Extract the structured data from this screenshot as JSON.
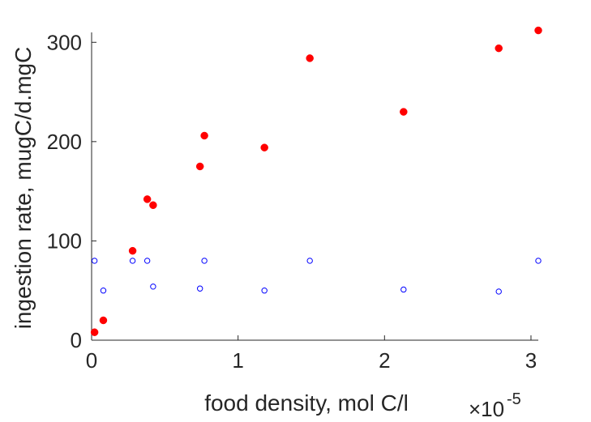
{
  "chart_data": {
    "type": "scatter",
    "title": "",
    "xlabel": "food density, mol C/l",
    "ylabel": "ingestion rate, mugC/d.mgC",
    "x_exponent": {
      "base": "×10",
      "power": "-5"
    },
    "xlim": [
      0,
      3.05
    ],
    "ylim": [
      0,
      310
    ],
    "xticks": [
      0,
      1,
      2,
      3
    ],
    "yticks": [
      0,
      100,
      200,
      300
    ],
    "grid": false,
    "legend": "none",
    "series": [
      {
        "marker": "filled-circle",
        "color": "#ff0000",
        "x": [
          0.02,
          0.08,
          0.28,
          0.38,
          0.42,
          0.74,
          0.77,
          1.18,
          1.49,
          2.13,
          2.78,
          3.05
        ],
        "y": [
          8,
          20,
          90,
          142,
          136,
          175,
          206,
          194,
          284,
          230,
          294,
          312
        ]
      },
      {
        "marker": "open-circle",
        "color": "#0000ff",
        "x": [
          0.02,
          0.08,
          0.28,
          0.38,
          0.42,
          0.74,
          0.77,
          1.18,
          1.49,
          2.13,
          2.78,
          3.05
        ],
        "y": [
          80,
          50,
          80,
          80,
          54,
          52,
          80,
          50,
          80,
          51,
          49,
          80
        ]
      }
    ]
  }
}
